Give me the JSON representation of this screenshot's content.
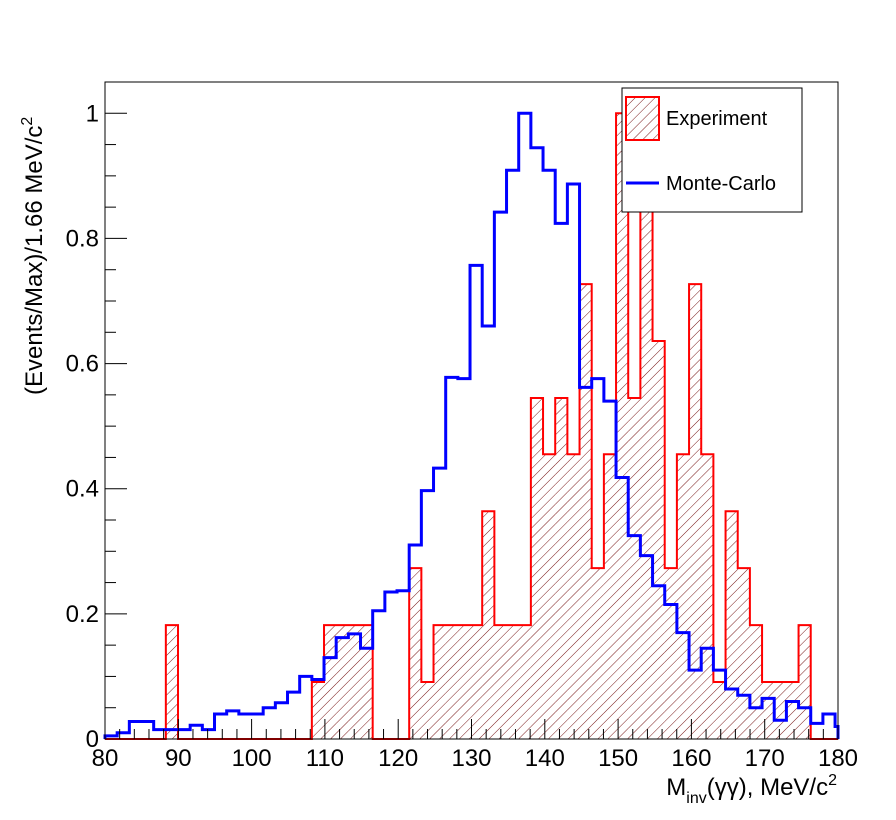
{
  "chart_data": {
    "type": "bar",
    "xlabel_main": "M",
    "xlabel_sub": "inv",
    "xlabel_rest": "(γγ), MeV/c",
    "xlabel_sup": "2",
    "ylabel_main": "(Events/Max)/1.66 MeV/c",
    "ylabel_sup": "2",
    "xlim": [
      80,
      180
    ],
    "ylim": [
      0,
      1.05
    ],
    "x_ticks": [
      80,
      90,
      100,
      110,
      120,
      130,
      140,
      150,
      160,
      170,
      180
    ],
    "x_tick_labels": [
      "80",
      "90",
      "100",
      "110",
      "120",
      "130",
      "140",
      "150",
      "160",
      "170",
      "180"
    ],
    "y_ticks": [
      0,
      0.2,
      0.4,
      0.6,
      0.8,
      1
    ],
    "y_tick_labels": [
      "0",
      "0.2",
      "0.4",
      "0.6",
      "0.8",
      "1"
    ],
    "bin_width": 1.66,
    "legend": {
      "position": "top-right",
      "entries": [
        {
          "label": "Experiment",
          "style": "hatched-fill",
          "color": "#ff0000"
        },
        {
          "label": "Monte-Carlo",
          "style": "line",
          "color": "#0000ff"
        }
      ]
    },
    "series": [
      {
        "name": "Experiment",
        "color": "#ff0000",
        "x_start": 80,
        "values": [
          0,
          0,
          0,
          0,
          0,
          0.182,
          0,
          0,
          0,
          0,
          0,
          0,
          0,
          0,
          0,
          0,
          0,
          0.091,
          0.182,
          0.182,
          0.182,
          0.182,
          0,
          0,
          0,
          0.273,
          0.091,
          0.182,
          0.182,
          0.182,
          0.182,
          0.364,
          0.182,
          0.182,
          0.182,
          0.545,
          0.455,
          0.545,
          0.455,
          0.727,
          0.273,
          0.455,
          1.0,
          0.545,
          0.909,
          0.636,
          0.273,
          0.455,
          0.727,
          0.455,
          0.091,
          0.364,
          0.273,
          0.182,
          0.091,
          0.091,
          0.091,
          0.182,
          0,
          0,
          0,
          0.091,
          0.091,
          0,
          0.091,
          0,
          0,
          0,
          0,
          0,
          0,
          0.091,
          0,
          0,
          0
        ]
      },
      {
        "name": "Monte-Carlo",
        "color": "#0000ff",
        "x_start": 80,
        "values": [
          0.005,
          0.01,
          0.028,
          0.028,
          0.015,
          0.015,
          0.015,
          0.022,
          0.015,
          0.04,
          0.045,
          0.04,
          0.04,
          0.05,
          0.058,
          0.075,
          0.1,
          0.095,
          0.13,
          0.162,
          0.168,
          0.145,
          0.205,
          0.235,
          0.237,
          0.31,
          0.397,
          0.433,
          0.578,
          0.576,
          0.757,
          0.66,
          0.842,
          0.909,
          1.0,
          0.945,
          0.909,
          0.824,
          0.887,
          0.562,
          0.576,
          0.54,
          0.418,
          0.325,
          0.293,
          0.245,
          0.215,
          0.17,
          0.11,
          0.145,
          0.11,
          0.08,
          0.07,
          0.05,
          0.065,
          0.03,
          0.06,
          0.05,
          0.025,
          0.04,
          0.02,
          0.012
        ]
      }
    ]
  }
}
